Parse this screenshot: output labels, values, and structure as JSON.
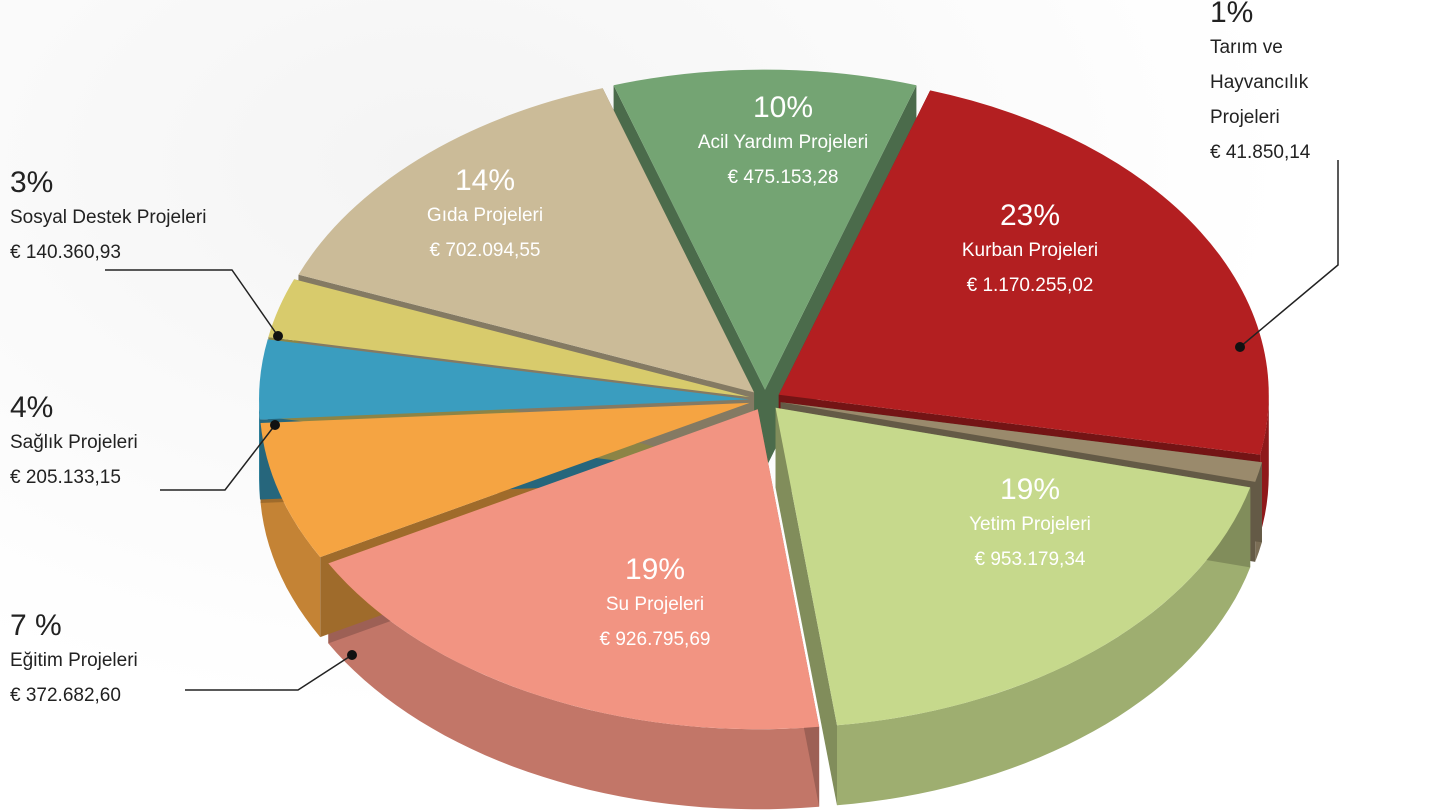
{
  "chart_data": {
    "type": "pie",
    "categories": [
      "Acil Yardım Projeleri",
      "Kurban Projeleri",
      "Tarım ve Hayvancılık Projeleri",
      "Yetim Projeleri",
      "Su Projeleri",
      "Eğitim Projeleri",
      "Sağlık Projeleri",
      "Sosyal Destek Projeleri",
      "Gıda Projeleri"
    ],
    "values": [
      10,
      23,
      1,
      19,
      19,
      7,
      4,
      3,
      14
    ],
    "value_labels": [
      "10%",
      "23%",
      "1%",
      "19%",
      "19%",
      "7 %",
      "4%",
      "3%",
      "14%"
    ],
    "amounts": [
      "€ 475.153,28",
      "€ 1.170.255,02",
      "€ 41.850,14",
      "€ 953.179,34",
      "€ 926.795,69",
      "€ 372.682,60",
      "€ 205.133,15",
      "€ 140.360,93",
      "€ 702.094,55"
    ],
    "colors": [
      "#74a473",
      "#b31f21",
      "#9a8a6c",
      "#c6d98c",
      "#f29482",
      "#f5a442",
      "#3a9dbf",
      "#d8cb6c",
      "#cbbb98"
    ]
  }
}
